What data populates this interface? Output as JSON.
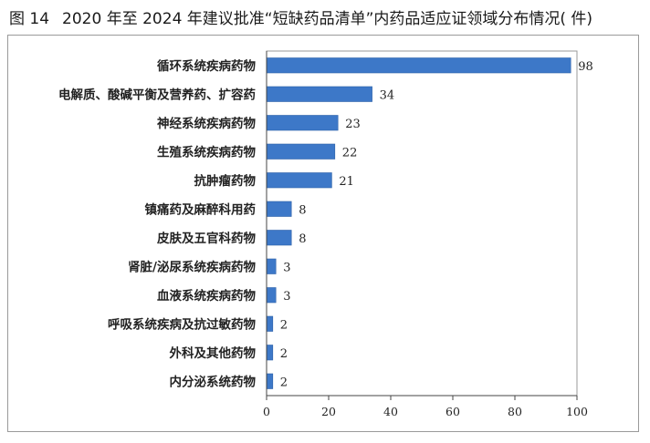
{
  "figure": {
    "number": "图 14",
    "title": "2020 年至 2024 年建议批准“短缺药品清单”内药品适应证领域分布情况( 件)"
  },
  "colors": {
    "bar": "#3d78c8",
    "bar_edge": "#2f62a8",
    "axis": "#444444",
    "plot_border": "#9a9a9a"
  },
  "chart_data": {
    "type": "bar",
    "orientation": "horizontal",
    "title": "2020 年至 2024 年建议批准“短缺药品清单”内药品适应证领域分布情况( 件)",
    "categories": [
      "循环系统疾病药物",
      "电解质、酸碱平衡及营养药、扩容药",
      "神经系统疾病药物",
      "生殖系统疾病药物",
      "抗肿瘤药物",
      "镇痛药及麻醉科用药",
      "皮肤及五官科药物",
      "肾脏/泌尿系统疾病药物",
      "血液系统疾病药物",
      "呼吸系统疾病及抗过敏药物",
      "外科及其他药物",
      "内分泌系统药物"
    ],
    "values": [
      98,
      34,
      23,
      22,
      21,
      8,
      8,
      3,
      3,
      2,
      2,
      2
    ],
    "xlim": [
      0,
      100
    ],
    "xticks": [
      0,
      20,
      40,
      60,
      80,
      100
    ],
    "xlabel": "",
    "ylabel": "",
    "grid": false,
    "legend": "none",
    "data_labels": true
  }
}
